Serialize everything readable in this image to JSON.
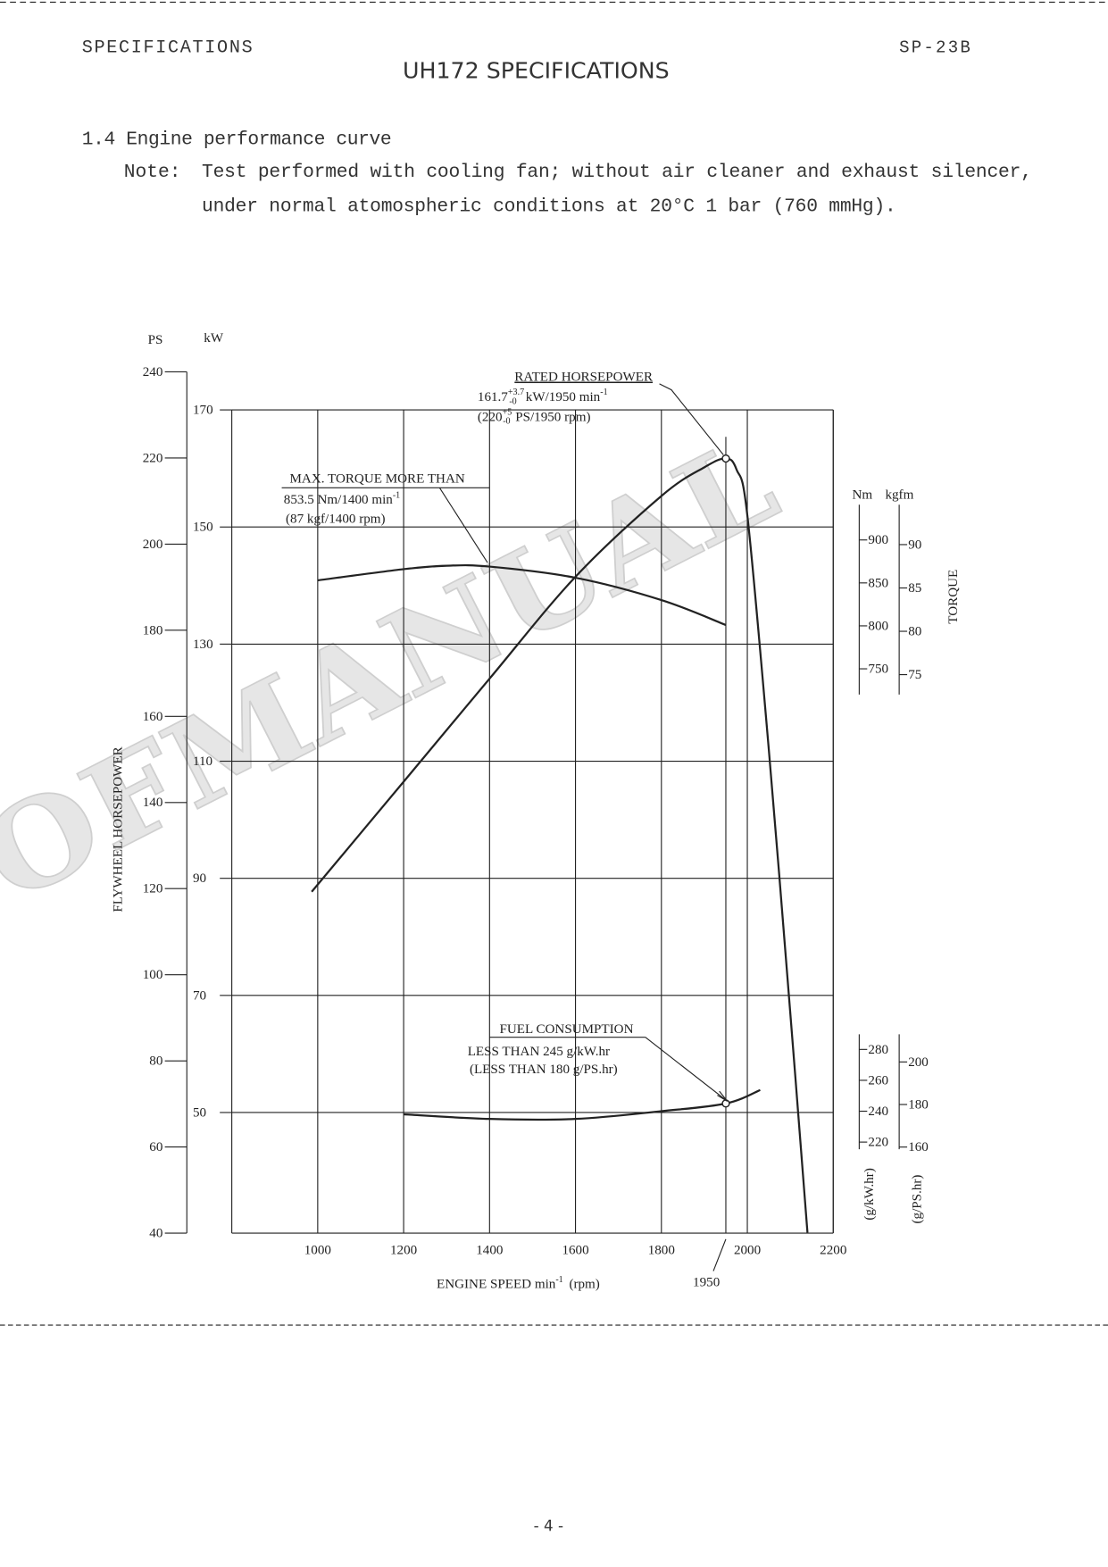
{
  "header": {
    "section": "SPECIFICATIONS",
    "code": "SP-23B",
    "title": "UH172 SPECIFICATIONS"
  },
  "heading": "1.4 Engine performance curve",
  "note": {
    "label": "Note:",
    "lines": [
      "Test performed with cooling fan; without air cleaner and exhaust silencer,",
      "under normal atomospheric conditions at 20°C 1 bar (760 mmHg)."
    ]
  },
  "watermark": "OFMANUAL",
  "chart_data": {
    "type": "line",
    "ylabel": "FLYWHEEL HORSEPOWER",
    "torque_label": "TORQUE",
    "xlabel": {
      "text": "ENGINE SPEED  min",
      "exp": "-1",
      "unit": "(rpm)"
    },
    "xlim": [
      800,
      2200
    ],
    "xticks": [
      1000,
      1200,
      1400,
      1600,
      1800,
      2000,
      2200
    ],
    "x_marker": 1950,
    "grid": true,
    "grid_axis": "kW",
    "axes": [
      {
        "label": "PS",
        "lim": [
          40,
          240
        ],
        "ticks": [
          40,
          60,
          80,
          100,
          120,
          140,
          160,
          180,
          200,
          220,
          240
        ]
      },
      {
        "label": "kW",
        "lim": [
          29.4,
          176.5
        ],
        "ticks": [
          50,
          70,
          90,
          110,
          130,
          150,
          170
        ]
      },
      {
        "label": "Nm",
        "lim": [
          720,
          941
        ],
        "ticks": [
          750,
          800,
          850,
          900
        ]
      },
      {
        "label": "kgfm",
        "lim": [
          72.7,
          94.6
        ],
        "ticks": [
          75,
          80,
          85,
          90
        ]
      },
      {
        "label": "(g/kW.hr)",
        "lim": [
          215.4,
          289.8
        ],
        "ticks": [
          220,
          240,
          260,
          280
        ]
      },
      {
        "label": "(g/PS.hr)",
        "lim": [
          159,
          213
        ],
        "ticks": [
          160,
          180,
          200
        ]
      }
    ],
    "series": [
      {
        "axis": "kW",
        "color": "#222222",
        "marker_x": 1950,
        "x": [
          986,
          1200,
          1400,
          1600,
          1800,
          1900,
          1950,
          1975,
          2000,
          2050,
          2100,
          2140
        ],
        "values": [
          87.7,
          106.5,
          124.1,
          141.5,
          155.3,
          160.2,
          161.7,
          159.8,
          152,
          112,
          67,
          29.5
        ],
        "annotation": {
          "title": "RATED HORSEPOWER",
          "line1": {
            "value": "161.7",
            "tol_plus": "+3.7",
            "tol_minus": "-0",
            "unit": "kW/1950 min",
            "exp": "-1"
          },
          "line2": {
            "value": "(220",
            "tol_plus": "+5",
            "tol_minus": "-0",
            "unit": "PS/1950 rpm)"
          }
        }
      },
      {
        "axis": "Nm",
        "color": "#222222",
        "x": [
          1000,
          1200,
          1300,
          1400,
          1600,
          1800,
          1950
        ],
        "values": [
          853,
          866,
          870,
          869,
          856,
          830,
          801
        ],
        "annotation": {
          "title": "MAX. TORQUE  MORE THAN",
          "line1": {
            "text": "853.5 Nm/1400 min",
            "exp": "-1"
          },
          "line2": "(87 kgf/1400 rpm)"
        }
      },
      {
        "axis": "(g/kW.hr)",
        "color": "#222222",
        "marker_x": 1950,
        "x": [
          1200,
          1400,
          1600,
          1800,
          1950,
          2030
        ],
        "values": [
          238,
          235,
          235,
          240,
          245,
          253.7
        ],
        "annotation": {
          "title": "FUEL CONSUMPTION",
          "line1": "LESS THAN 245 g/kW.hr",
          "line2": "(LESS THAN 180 g/PS.hr)"
        }
      }
    ]
  },
  "footer": "- 4 -"
}
